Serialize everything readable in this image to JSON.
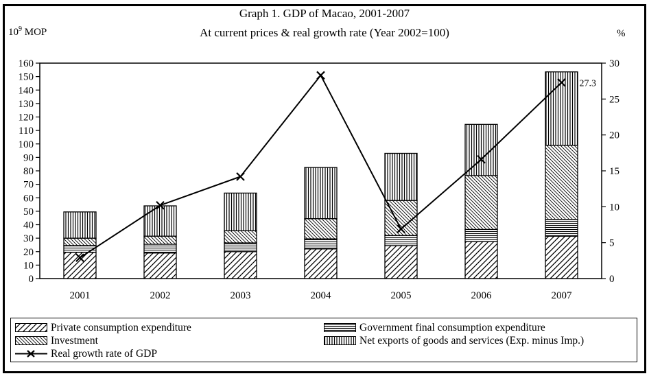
{
  "chart_data": {
    "type": "bar",
    "subtype": "stacked-bar-with-line-overlay",
    "title": "Graph 1. GDP of Macao, 2001-2007",
    "subtitle": "At current prices & real growth rate (Year 2002=100)",
    "categories": [
      "2001",
      "2002",
      "2003",
      "2004",
      "2005",
      "2006",
      "2007"
    ],
    "left_axis": {
      "label": "10⁹ MOP",
      "label_base": "10",
      "label_sup": "9",
      "label_unit": "MOP",
      "min": 0,
      "max": 160,
      "tick_step": 10
    },
    "right_axis": {
      "label": "%",
      "min": 0,
      "max": 30,
      "tick_step": 5
    },
    "bars": {
      "stacked": true,
      "axis": "left",
      "series": [
        {
          "name": "Private consumption expenditure",
          "pattern": "diagonal-forward-hatch",
          "values": [
            19.5,
            19,
            20,
            22,
            24.5,
            27.5,
            31.5
          ]
        },
        {
          "name": "Government final consumption expenditure",
          "pattern": "horizontal-lines",
          "values": [
            5,
            6.5,
            6.5,
            7.5,
            7.5,
            9,
            12.5
          ]
        },
        {
          "name": "Investment",
          "pattern": "diagonal-back-hatch",
          "values": [
            5.5,
            6,
            9,
            15,
            26,
            40,
            55
          ]
        },
        {
          "name": "Net exports of goods and services (Exp. minus Imp.)",
          "pattern": "vertical-lines",
          "values": [
            19.5,
            22.5,
            28,
            38,
            35,
            38,
            54.5
          ]
        }
      ],
      "totals": [
        49.5,
        54,
        63.5,
        82.5,
        93,
        114.5,
        153.5
      ]
    },
    "line": {
      "name": "Real growth rate of GDP",
      "axis": "right",
      "marker": "x",
      "values": [
        2.9,
        10.2,
        14.2,
        28.3,
        6.9,
        16.6,
        27.3
      ],
      "last_point_label": "27.3"
    },
    "grid": false,
    "legend_position": "bottom-box",
    "colors": {
      "foreground": "#000000",
      "background": "#ffffff"
    }
  }
}
